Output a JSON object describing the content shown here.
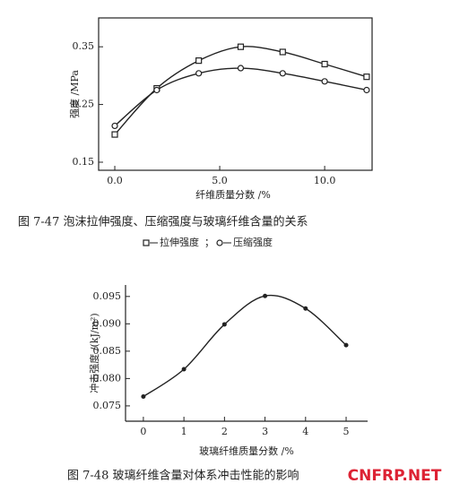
{
  "chart_data": [
    {
      "type": "line",
      "title": "图 7-47  泡沫拉伸强度、压缩强度与玻璃纤维含量的关系",
      "x_label": "纤维质量分数 /%",
      "y_label": "强度 /MPa",
      "legend_separator": "；",
      "x": [
        0,
        2,
        4,
        6,
        8,
        10,
        12
      ],
      "series": [
        {
          "name": "拉伸强度",
          "color": "#222222",
          "marker": "square",
          "values": [
            0.198,
            0.278,
            0.326,
            0.35,
            0.341,
            0.32,
            0.298
          ]
        },
        {
          "name": "压缩强度",
          "color": "#222222",
          "marker": "circle",
          "values": [
            0.213,
            0.275,
            0.304,
            0.313,
            0.304,
            0.29,
            0.275
          ]
        }
      ],
      "xlim": [
        -0.77,
        12.26
      ],
      "xticks": [
        {
          "value": 0,
          "label": "0.0"
        },
        {
          "value": 5,
          "label": "5.0"
        },
        {
          "value": 10,
          "label": "10.0"
        }
      ],
      "ylim": [
        0.136,
        0.4
      ],
      "yticks": [
        0.15,
        0.25,
        0.35
      ]
    },
    {
      "type": "line",
      "title": "图 7-48   玻璃纤维含量对体系冲击性能的影响",
      "x_label": "玻璃纤维质量分数 /%",
      "y_label": "冲击强度 /(kJ/m²)",
      "watermark": "CNFRP.NET",
      "x": [
        0,
        1,
        2,
        3,
        4,
        5
      ],
      "series": [
        {
          "name": "冲击强度",
          "color": "#222222",
          "marker": "dot",
          "values": [
            0.0767,
            0.0817,
            0.0899,
            0.0951,
            0.0928,
            0.0861
          ]
        }
      ],
      "xlim": [
        -0.44,
        5.53
      ],
      "xticks": [
        0,
        1,
        2,
        3,
        4,
        5
      ],
      "ylim": [
        0.0722,
        0.0971
      ],
      "yticks": [
        0.075,
        {
          "value": 0.08,
          "label": "0.080"
        },
        0.085,
        {
          "value": 0.09,
          "label": "0.090"
        },
        0.095
      ]
    }
  ]
}
